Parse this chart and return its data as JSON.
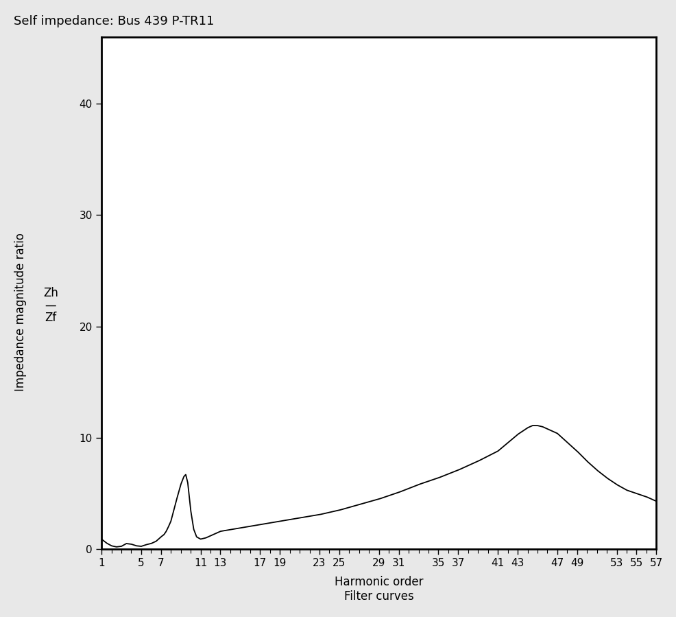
{
  "title": "Self impedance: Bus 439 P-TR11",
  "xlabel": "Harmonic order",
  "xlabel2": "Filter curves",
  "ylabel_main": "Impedance magnitude ratio  ",
  "ylabel_zh": "Zh",
  "ylabel_zf": "Zf",
  "xlim": [
    1,
    57
  ],
  "ylim": [
    0,
    46
  ],
  "yticks": [
    0,
    10,
    20,
    30,
    40
  ],
  "xtick_labels": [
    "1",
    "5",
    "7",
    "11",
    "13",
    "17",
    "19",
    "23",
    "25",
    "29",
    "31",
    "35",
    "37",
    "41",
    "43",
    "47",
    "49",
    "53",
    "55",
    "57"
  ],
  "xtick_positions": [
    1,
    5,
    7,
    11,
    13,
    17,
    19,
    23,
    25,
    29,
    31,
    35,
    37,
    41,
    43,
    47,
    49,
    53,
    55,
    57
  ],
  "line_color": "#000000",
  "background_color": "#e8e8e8",
  "plot_background": "#ffffff",
  "title_fontsize": 13,
  "axis_fontsize": 12,
  "tick_fontsize": 11,
  "ctrl_pts": [
    [
      1,
      0.9
    ],
    [
      1.5,
      0.55
    ],
    [
      2,
      0.3
    ],
    [
      2.5,
      0.2
    ],
    [
      3,
      0.25
    ],
    [
      3.5,
      0.5
    ],
    [
      4,
      0.45
    ],
    [
      4.5,
      0.3
    ],
    [
      5,
      0.25
    ],
    [
      5.5,
      0.4
    ],
    [
      6,
      0.5
    ],
    [
      6.5,
      0.7
    ],
    [
      7,
      1.1
    ],
    [
      7.3,
      1.3
    ],
    [
      7.5,
      1.55
    ],
    [
      7.7,
      1.9
    ],
    [
      8.0,
      2.5
    ],
    [
      8.5,
      4.2
    ],
    [
      9.0,
      5.8
    ],
    [
      9.3,
      6.5
    ],
    [
      9.5,
      6.7
    ],
    [
      9.7,
      6.0
    ],
    [
      10.0,
      3.5
    ],
    [
      10.3,
      1.8
    ],
    [
      10.6,
      1.1
    ],
    [
      11,
      0.9
    ],
    [
      11.5,
      1.0
    ],
    [
      12,
      1.2
    ],
    [
      13,
      1.6
    ],
    [
      15,
      1.9
    ],
    [
      17,
      2.2
    ],
    [
      19,
      2.5
    ],
    [
      21,
      2.8
    ],
    [
      23,
      3.1
    ],
    [
      25,
      3.5
    ],
    [
      27,
      4.0
    ],
    [
      29,
      4.5
    ],
    [
      31,
      5.1
    ],
    [
      33,
      5.8
    ],
    [
      35,
      6.4
    ],
    [
      37,
      7.1
    ],
    [
      39,
      7.9
    ],
    [
      41,
      8.8
    ],
    [
      43,
      10.3
    ],
    [
      44,
      10.9
    ],
    [
      44.5,
      11.1
    ],
    [
      45,
      11.1
    ],
    [
      45.5,
      11.0
    ],
    [
      46,
      10.8
    ],
    [
      47,
      10.4
    ],
    [
      48,
      9.6
    ],
    [
      49,
      8.8
    ],
    [
      50,
      7.9
    ],
    [
      51,
      7.1
    ],
    [
      52,
      6.4
    ],
    [
      53,
      5.8
    ],
    [
      54,
      5.3
    ],
    [
      55,
      5.0
    ],
    [
      56,
      4.7
    ],
    [
      57,
      4.3
    ]
  ]
}
